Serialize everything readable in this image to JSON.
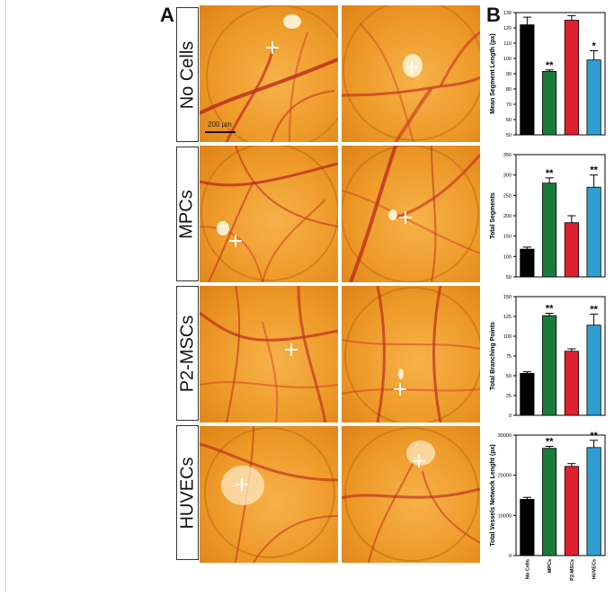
{
  "panel_labels": {
    "a": "A",
    "b": "B"
  },
  "row_labels": [
    "No Cells",
    "MPCs",
    "P2-MSCs",
    "HUVECs"
  ],
  "scale_bar_label": "200 µm",
  "colors": {
    "no_cells": "#000000",
    "mpcs": "#1a7a3c",
    "p2_mscs": "#e0202f",
    "huvecs": "#2f9fd0"
  },
  "chart_data": [
    {
      "type": "bar",
      "categories": [
        "No Cells",
        "MPCs",
        "P2-MSCs",
        "HUVECs"
      ],
      "values": [
        122,
        91.5,
        125,
        99
      ],
      "errors": [
        5,
        1,
        3,
        6
      ],
      "significance": [
        "",
        "**",
        "",
        "*"
      ],
      "ylabel": "Mean Segment Length (px)",
      "ylim": [
        50,
        130
      ],
      "yticks": [
        50,
        60,
        70,
        80,
        90,
        100,
        110,
        120,
        130
      ],
      "show_xticks": false
    },
    {
      "type": "bar",
      "categories": [
        "No Cells",
        "MPCs",
        "P2-MSCs",
        "HUVECs"
      ],
      "values": [
        118,
        280,
        183,
        270
      ],
      "errors": [
        5,
        13,
        17,
        30
      ],
      "significance": [
        "",
        "**",
        "",
        "**"
      ],
      "ylabel": "Total Segments",
      "ylim": [
        50,
        350
      ],
      "yticks": [
        50,
        100,
        150,
        200,
        250,
        300,
        350
      ],
      "show_xticks": false
    },
    {
      "type": "bar",
      "categories": [
        "No Cells",
        "MPCs",
        "P2-MSCs",
        "HUVECs"
      ],
      "values": [
        53,
        126,
        81,
        114
      ],
      "errors": [
        2,
        3,
        3,
        14
      ],
      "significance": [
        "",
        "**",
        "",
        "**"
      ],
      "ylabel": "Total Branching Points",
      "ylim": [
        0,
        150
      ],
      "yticks": [
        0,
        25,
        50,
        75,
        100,
        125,
        150
      ],
      "show_xticks": false
    },
    {
      "type": "bar",
      "categories": [
        "No Cells",
        "MPCs",
        "P2-MSCs",
        "HUVECs"
      ],
      "values": [
        14000,
        26700,
        22200,
        26900
      ],
      "errors": [
        500,
        500,
        700,
        1800
      ],
      "significance": [
        "",
        "**",
        "",
        "**"
      ],
      "ylabel": "Total Vessels Network Lenght (px)",
      "ylim": [
        0,
        30000
      ],
      "yticks": [
        0,
        10000,
        20000,
        30000
      ],
      "show_xticks": true
    }
  ]
}
